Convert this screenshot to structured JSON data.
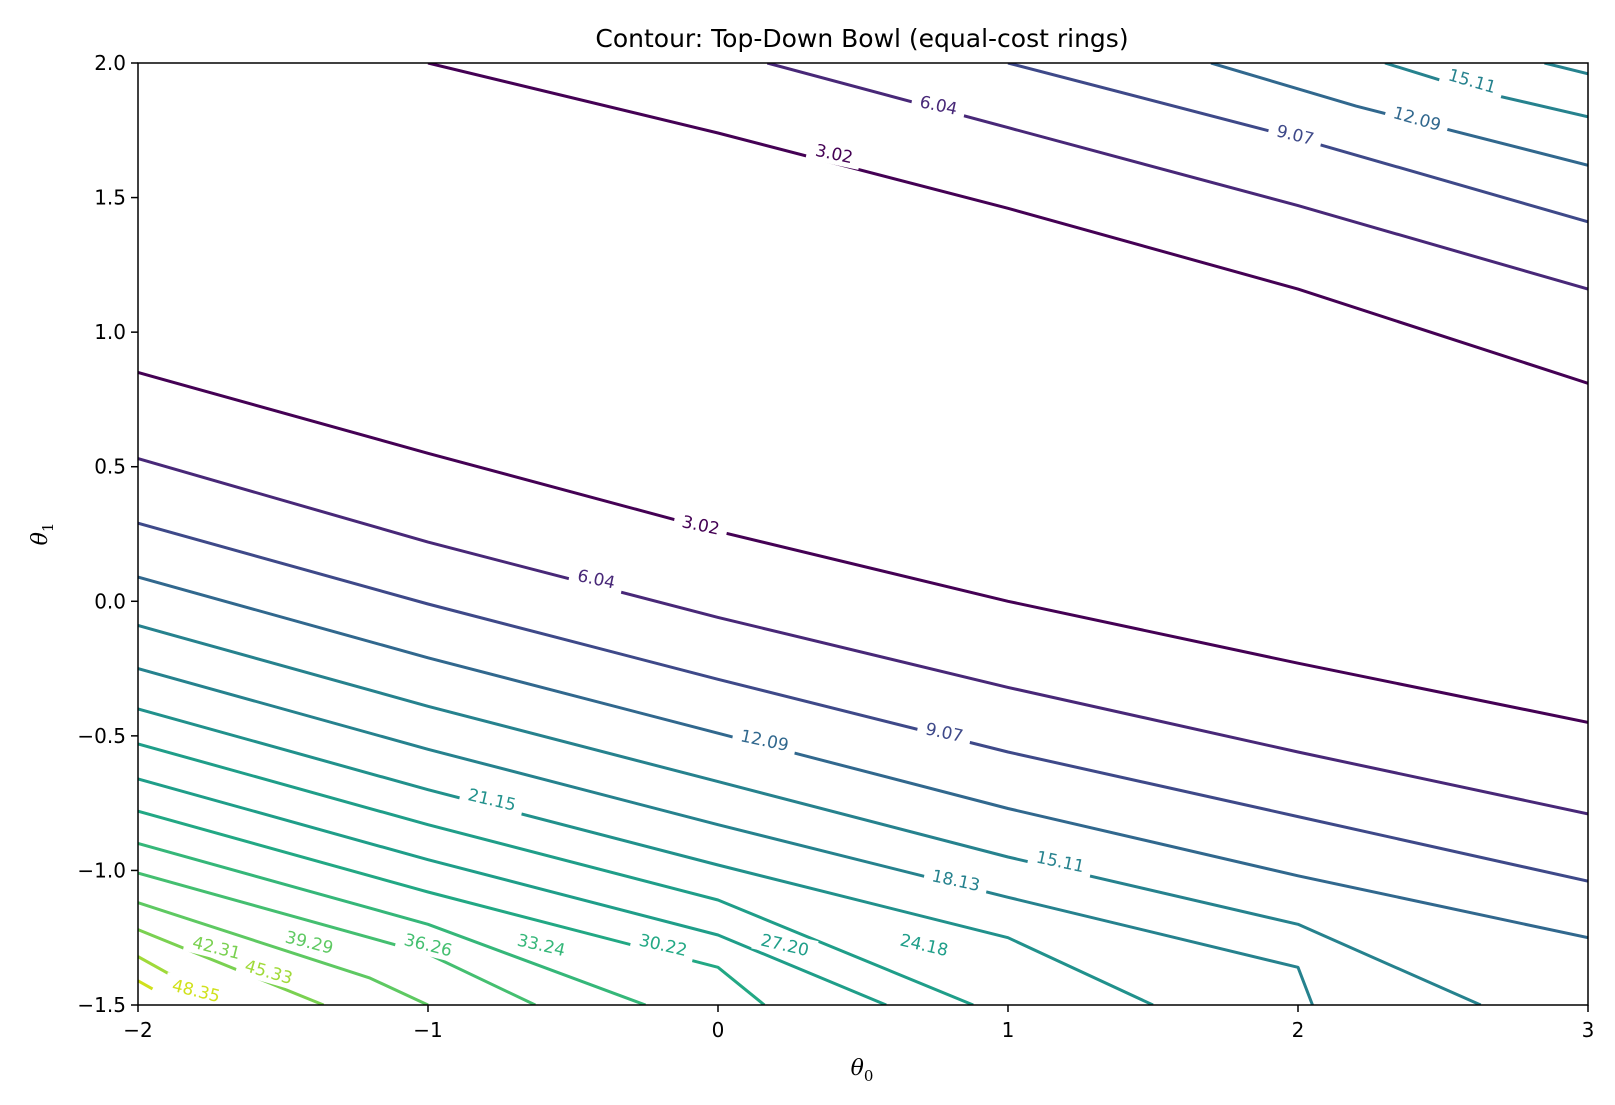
{
  "chart_data": {
    "type": "contour",
    "title": "Contour: Top-Down Bowl (equal-cost rings)",
    "xlabel": "θ",
    "xlabel_sub": "0",
    "ylabel": "θ",
    "ylabel_sub": "1",
    "xlim": [
      -2,
      3
    ],
    "ylim": [
      -1.5,
      2
    ],
    "xticks": [
      -2,
      -1,
      0,
      1,
      2,
      3
    ],
    "yticks": [
      -1.5,
      -1.0,
      -0.5,
      0.0,
      0.5,
      1.0,
      1.5,
      2.0
    ],
    "xtick_labels": [
      "−2",
      "−1",
      "0",
      "1",
      "2",
      "3"
    ],
    "ytick_labels": [
      "−1.5",
      "−1.0",
      "−0.5",
      "0.0",
      "0.5",
      "1.0",
      "1.5",
      "2.0"
    ],
    "colormap": "viridis",
    "levels": [
      3.02,
      6.04,
      9.07,
      12.09,
      15.11,
      18.13,
      21.15,
      24.18,
      27.2,
      30.22,
      33.24,
      36.26,
      39.29,
      42.31,
      45.33,
      48.35
    ],
    "level_labels": [
      "3.02",
      "6.04",
      "9.07",
      "12.09",
      "15.11",
      "18.13",
      "21.15",
      "24.18",
      "27.20",
      "30.22",
      "33.24",
      "36.26",
      "39.29",
      "42.31",
      "45.33",
      "48.35"
    ],
    "contour_lines": [
      {
        "level": 3.02,
        "color": "#440154",
        "points": [
          [
            -2,
            0.85
          ],
          [
            -1,
            0.55
          ],
          [
            0,
            0.26
          ],
          [
            1,
            0.0
          ],
          [
            2,
            -0.23
          ],
          [
            3,
            -0.45
          ]
        ]
      },
      {
        "level": 3.02,
        "color": "#440154",
        "points": [
          [
            -1,
            2.0
          ],
          [
            0,
            1.74
          ],
          [
            1,
            1.46
          ],
          [
            2,
            1.16
          ],
          [
            3,
            0.81
          ]
        ]
      },
      {
        "level": 6.04,
        "color": "#482878",
        "points": [
          [
            -2,
            0.53
          ],
          [
            -1,
            0.22
          ],
          [
            0,
            -0.06
          ],
          [
            1,
            -0.32
          ],
          [
            2,
            -0.56
          ],
          [
            3,
            -0.79
          ]
        ]
      },
      {
        "level": 6.04,
        "color": "#482878",
        "points": [
          [
            0.17,
            2.0
          ],
          [
            1,
            1.76
          ],
          [
            2,
            1.47
          ],
          [
            3,
            1.16
          ]
        ]
      },
      {
        "level": 9.07,
        "color": "#3e4989",
        "points": [
          [
            -2,
            0.29
          ],
          [
            -1,
            -0.01
          ],
          [
            0,
            -0.29
          ],
          [
            1,
            -0.56
          ],
          [
            2,
            -0.8
          ],
          [
            3,
            -1.04
          ]
        ]
      },
      {
        "level": 9.07,
        "color": "#3e4989",
        "points": [
          [
            1,
            2.0
          ],
          [
            2,
            1.72
          ],
          [
            3,
            1.41
          ]
        ]
      },
      {
        "level": 12.09,
        "color": "#31688e",
        "points": [
          [
            -2,
            0.09
          ],
          [
            -1,
            -0.21
          ],
          [
            0,
            -0.49
          ],
          [
            1,
            -0.77
          ],
          [
            2,
            -1.02
          ],
          [
            3,
            -1.25
          ]
        ]
      },
      {
        "level": 12.09,
        "color": "#31688e",
        "points": [
          [
            1.7,
            2.0
          ],
          [
            2.2,
            1.84
          ],
          [
            3,
            1.62
          ]
        ]
      },
      {
        "level": 15.11,
        "color": "#26828e",
        "points": [
          [
            -2,
            -0.09
          ],
          [
            -1,
            -0.39
          ],
          [
            0,
            -0.67
          ],
          [
            1,
            -0.95
          ],
          [
            2,
            -1.2
          ],
          [
            2.63,
            -1.5
          ]
        ]
      },
      {
        "level": 15.11,
        "color": "#26828e",
        "points": [
          [
            2.3,
            2.0
          ],
          [
            2.6,
            1.9
          ],
          [
            3,
            1.8
          ]
        ]
      },
      {
        "level": 18.13,
        "color": "#26828e",
        "points": [
          [
            -2,
            -0.25
          ],
          [
            -1,
            -0.55
          ],
          [
            0,
            -0.83
          ],
          [
            1,
            -1.1
          ],
          [
            2,
            -1.36
          ],
          [
            2.05,
            -1.5
          ]
        ]
      },
      {
        "level": 18.13,
        "color": "#26828e",
        "points": [
          [
            2.85,
            2.0
          ],
          [
            3,
            1.96
          ]
        ]
      },
      {
        "level": 21.15,
        "color": "#21918c",
        "points": [
          [
            -2,
            -0.4
          ],
          [
            -1,
            -0.7
          ],
          [
            0,
            -0.98
          ],
          [
            1,
            -1.25
          ],
          [
            1.5,
            -1.5
          ]
        ]
      },
      {
        "level": 24.18,
        "color": "#1f9e89",
        "points": [
          [
            -2,
            -0.53
          ],
          [
            -1,
            -0.83
          ],
          [
            0,
            -1.11
          ],
          [
            0.88,
            -1.5
          ]
        ]
      },
      {
        "level": 27.2,
        "color": "#1f9e89",
        "points": [
          [
            -2,
            -0.66
          ],
          [
            -1,
            -0.96
          ],
          [
            0,
            -1.24
          ],
          [
            0.58,
            -1.5
          ]
        ]
      },
      {
        "level": 30.22,
        "color": "#22a884",
        "points": [
          [
            -2,
            -0.78
          ],
          [
            -1,
            -1.08
          ],
          [
            0,
            -1.36
          ],
          [
            0.16,
            -1.5
          ]
        ]
      },
      {
        "level": 33.24,
        "color": "#35b779",
        "points": [
          [
            -2,
            -0.9
          ],
          [
            -1,
            -1.2
          ],
          [
            -0.25,
            -1.5
          ]
        ]
      },
      {
        "level": 36.26,
        "color": "#44bf70",
        "points": [
          [
            -2,
            -1.01
          ],
          [
            -1,
            -1.31
          ],
          [
            -0.63,
            -1.5
          ]
        ]
      },
      {
        "level": 39.29,
        "color": "#5ec962",
        "points": [
          [
            -2,
            -1.12
          ],
          [
            -1.2,
            -1.4
          ],
          [
            -1,
            -1.5
          ]
        ]
      },
      {
        "level": 42.31,
        "color": "#7ad151",
        "points": [
          [
            -2,
            -1.22
          ],
          [
            -1.36,
            -1.5
          ]
        ]
      },
      {
        "level": 45.33,
        "color": "#a0da39",
        "points": [
          [
            -2,
            -1.32
          ],
          [
            -1.7,
            -1.5
          ]
        ]
      },
      {
        "level": 48.35,
        "color": "#d0e11c",
        "points": [
          [
            -2,
            -1.41
          ],
          [
            -1.95,
            -1.44
          ]
        ]
      }
    ],
    "inline_labels": [
      {
        "text": "3.02",
        "x": 0.4,
        "y": 1.66,
        "angle": 12,
        "color": "#440154"
      },
      {
        "text": "3.02",
        "x": -0.06,
        "y": 0.28,
        "angle": 12,
        "color": "#440154"
      },
      {
        "text": "6.04",
        "x": 0.76,
        "y": 1.84,
        "angle": 12,
        "color": "#482878"
      },
      {
        "text": "6.04",
        "x": -0.42,
        "y": 0.08,
        "angle": 12,
        "color": "#482878"
      },
      {
        "text": "9.07",
        "x": 1.99,
        "y": 1.73,
        "angle": 14,
        "color": "#3e4989"
      },
      {
        "text": "9.07",
        "x": 0.78,
        "y": -0.49,
        "angle": 12,
        "color": "#3e4989"
      },
      {
        "text": "12.09",
        "x": 2.41,
        "y": 1.79,
        "angle": 16,
        "color": "#31688e"
      },
      {
        "text": "12.09",
        "x": 0.16,
        "y": -0.52,
        "angle": 12,
        "color": "#31688e"
      },
      {
        "text": "15.11",
        "x": 2.6,
        "y": 1.93,
        "angle": 16,
        "color": "#26828e"
      },
      {
        "text": "15.11",
        "x": 1.18,
        "y": -0.97,
        "angle": 12,
        "color": "#26828e"
      },
      {
        "text": "18.13",
        "x": 0.82,
        "y": -1.04,
        "angle": 12,
        "color": "#26828e"
      },
      {
        "text": "21.15",
        "x": -0.78,
        "y": -0.74,
        "angle": 13,
        "color": "#21918c"
      },
      {
        "text": "24.18",
        "x": 0.71,
        "y": -1.28,
        "angle": 13,
        "color": "#1f9e89"
      },
      {
        "text": "27.20",
        "x": 0.23,
        "y": -1.28,
        "angle": 13,
        "color": "#1f9e89"
      },
      {
        "text": "30.22",
        "x": -0.19,
        "y": -1.28,
        "angle": 13,
        "color": "#22a884"
      },
      {
        "text": "33.24",
        "x": -0.61,
        "y": -1.28,
        "angle": 13,
        "color": "#35b779"
      },
      {
        "text": "36.26",
        "x": -1.0,
        "y": -1.28,
        "angle": 14,
        "color": "#44bf70"
      },
      {
        "text": "39.29",
        "x": -1.41,
        "y": -1.27,
        "angle": 14,
        "color": "#5ec962"
      },
      {
        "text": "42.31",
        "x": -1.73,
        "y": -1.29,
        "angle": 14,
        "color": "#7ad151"
      },
      {
        "text": "45.33",
        "x": -1.55,
        "y": -1.38,
        "angle": 16,
        "color": "#a0da39"
      },
      {
        "text": "48.35",
        "x": -1.8,
        "y": -1.45,
        "angle": 14,
        "color": "#d0e11c"
      }
    ]
  }
}
